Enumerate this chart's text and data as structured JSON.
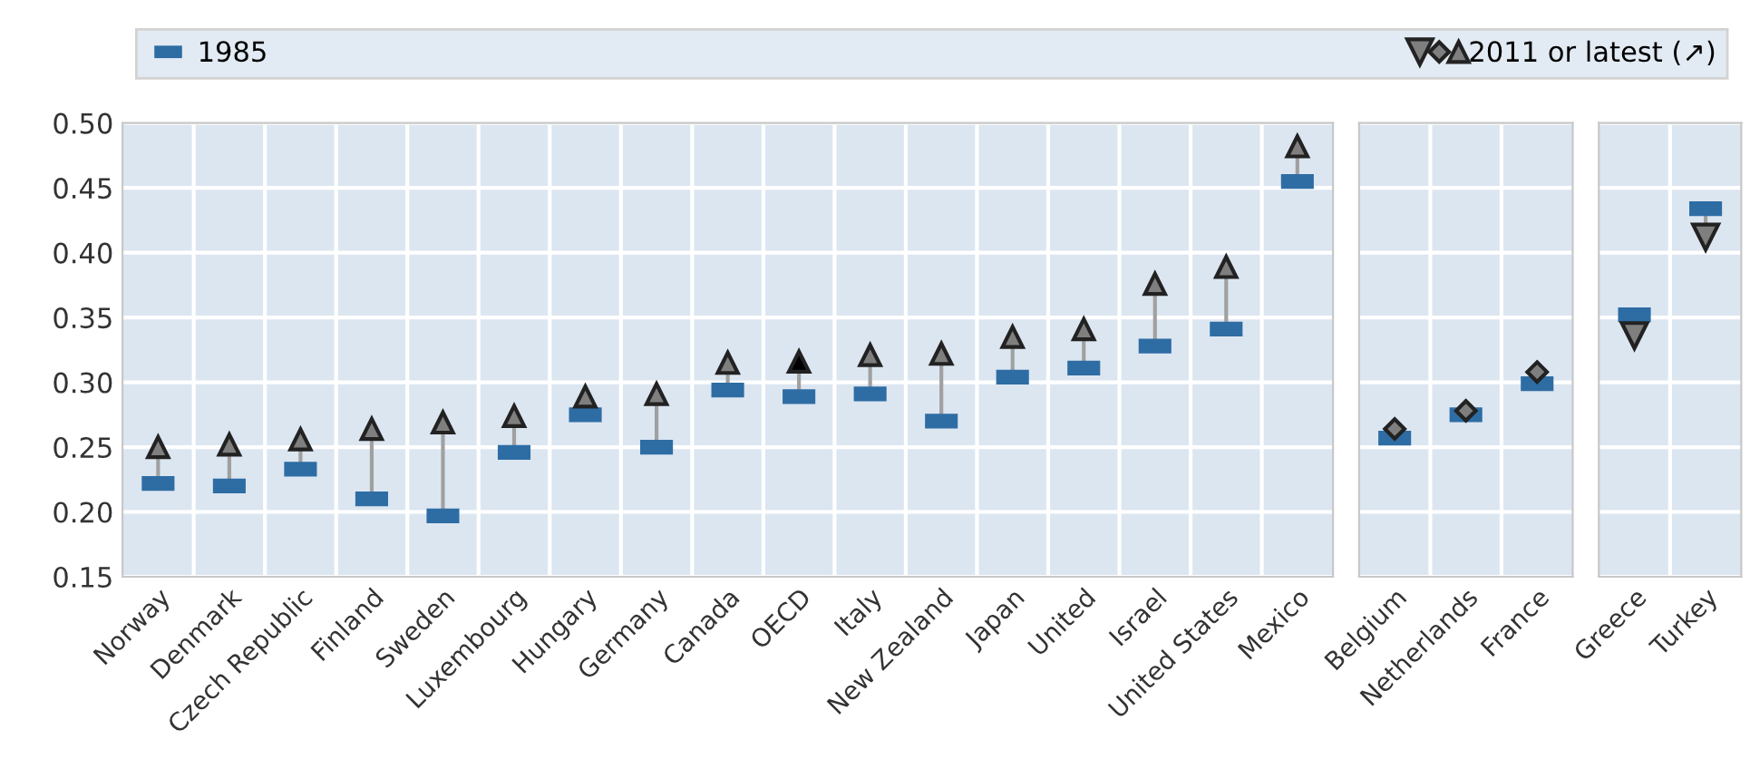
{
  "chart_data": [
    {
      "type": "scatter",
      "categories": [
        "Norway",
        "Denmark",
        "Czech Republic",
        "Finland",
        "Sweden",
        "Luxembourg",
        "Hungary",
        "Germany",
        "Canada",
        "OECD",
        "Italy",
        "New Zealand",
        "Japan",
        "United",
        "Israel",
        "United States",
        "Mexico"
      ],
      "ylim": [
        0.15,
        0.5
      ],
      "yticks": [
        {
          "value": 0.15,
          "label": "0.15"
        },
        {
          "value": 0.2,
          "label": "0.20"
        },
        {
          "value": 0.25,
          "label": "0.25"
        },
        {
          "value": 0.3,
          "label": "0.30"
        },
        {
          "value": 0.35,
          "label": "0.35"
        },
        {
          "value": 0.4,
          "label": "0.40"
        },
        {
          "value": 0.45,
          "label": "0.45"
        },
        {
          "value": 0.5,
          "label": "0.50"
        }
      ],
      "grid": true,
      "legend": "top",
      "series": [
        {
          "name": "1985",
          "color": "#2e6da4",
          "marker": "square",
          "values": [
            0.222,
            0.22,
            0.233,
            0.21,
            0.197,
            0.246,
            0.275,
            0.25,
            0.294,
            0.289,
            0.291,
            0.27,
            0.304,
            0.311,
            0.328,
            0.341,
            0.455
          ]
        },
        {
          "name": "2011 or latest (↗)",
          "color": "#7f7f7f",
          "colors": [
            "#7f7f7f",
            "#7f7f7f",
            "#7f7f7f",
            "#7f7f7f",
            "#7f7f7f",
            "#7f7f7f",
            "#7f7f7f",
            "#7f7f7f",
            "#7f7f7f",
            "#000000",
            "#7f7f7f",
            "#7f7f7f",
            "#7f7f7f",
            "#7f7f7f",
            "#7f7f7f",
            "#7f7f7f",
            "#7f7f7f"
          ],
          "marker": "triangle",
          "values": [
            0.25,
            0.252,
            0.256,
            0.264,
            0.269,
            0.274,
            0.289,
            0.291,
            0.315,
            0.316,
            0.321,
            0.322,
            0.335,
            0.341,
            0.376,
            0.389,
            0.482
          ]
        }
      ]
    },
    {
      "type": "scatter",
      "categories": [
        "Belgium",
        "Netherlands",
        "France"
      ],
      "ylim": [
        0.15,
        0.5
      ],
      "grid": true,
      "tick_labels": "x",
      "series": [
        {
          "color": "#2e6da4",
          "marker": "square",
          "values": [
            0.257,
            0.275,
            0.299
          ]
        },
        {
          "color": "#7f7f7f",
          "marker": "diamond",
          "values": [
            0.264,
            0.278,
            0.308
          ]
        }
      ]
    },
    {
      "type": "scatter",
      "categories": [
        "Greece",
        "Turkey"
      ],
      "ylim": [
        0.15,
        0.5
      ],
      "grid": true,
      "tick_labels": "x",
      "series": [
        {
          "color": "#2e6da4",
          "marker": "square",
          "values": [
            0.352,
            0.434
          ]
        },
        {
          "color": "#7f7f7f",
          "marker": "triangle-down",
          "values": [
            0.336,
            0.412
          ]
        }
      ]
    }
  ]
}
